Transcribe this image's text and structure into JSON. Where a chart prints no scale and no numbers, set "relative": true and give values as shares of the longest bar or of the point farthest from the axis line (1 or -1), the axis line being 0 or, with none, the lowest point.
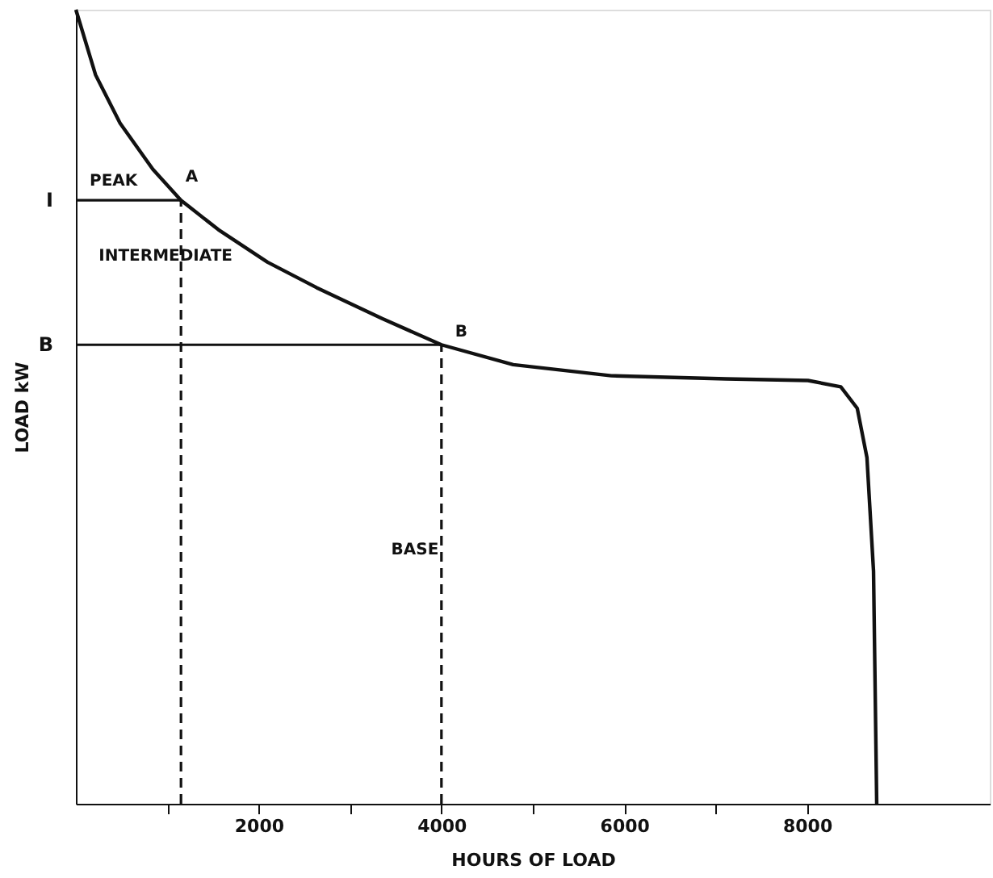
{
  "chart_data": {
    "type": "line",
    "relative": true,
    "xlabel": "HOURS OF LOAD",
    "ylabel": "LOAD kW",
    "x": [
      0,
      215,
      484,
      842,
      1150,
      1559,
      2097,
      2634,
      3351,
      4000,
      4785,
      5860,
      7115,
      8011,
      8370,
      8550,
      8656,
      8728,
      8763
    ],
    "series": [
      {
        "color": "#111111",
        "values": [
          1.0,
          0.918,
          0.857,
          0.799,
          0.76,
          0.723,
          0.682,
          0.65,
          0.611,
          0.578,
          0.553,
          0.539,
          0.535,
          0.533,
          0.525,
          0.498,
          0.436,
          0.293,
          0
        ]
      }
    ],
    "xlim": [
      0,
      10000
    ],
    "xticks": [
      {
        "value": 1000,
        "label": null
      },
      2000,
      {
        "value": 3000,
        "label": null
      },
      4000,
      {
        "value": 5000,
        "label": null
      },
      6000,
      {
        "value": 7000,
        "label": null
      },
      8000
    ],
    "ref_lines": [
      {
        "axis": "y",
        "value": 0.76,
        "label": "I",
        "color": "#111111",
        "line_style": "solid"
      },
      {
        "axis": "y",
        "value": 0.578,
        "label": "B",
        "color": "#111111",
        "line_style": "solid"
      },
      {
        "axis": "x",
        "value": 1150,
        "color": "#111111",
        "line_style": "dashed"
      },
      {
        "axis": "x",
        "value": 4000,
        "color": "#111111",
        "line_style": "dashed"
      }
    ],
    "annotations": [
      "PEAK",
      "A",
      "INTERMEDIATE",
      "B",
      "BASE"
    ],
    "grid": false,
    "marker": "none",
    "line_style": "solid"
  }
}
